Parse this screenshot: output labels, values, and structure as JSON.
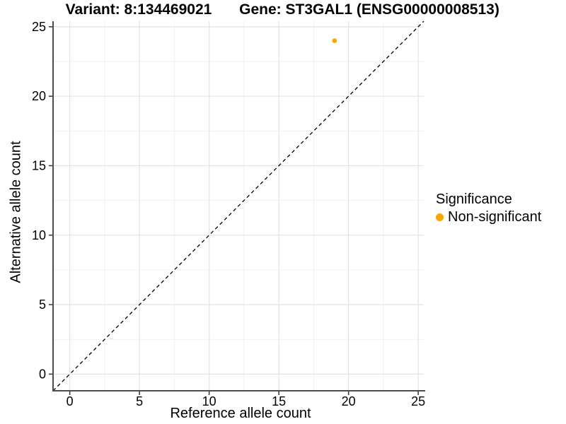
{
  "figure": {
    "title_left": "Variant: 8:134469021",
    "title_right": "Gene: ST3GAL1 (ENSG00000008513)"
  },
  "chart_data": {
    "type": "scatter",
    "title_left": "Variant: 8:134469021",
    "title_right": "Gene: ST3GAL1 (ENSG00000008513)",
    "xlabel": "Reference allele count",
    "ylabel": "Alternative allele count",
    "xlim": [
      -1.2,
      25.4
    ],
    "ylim": [
      -1.2,
      25.4
    ],
    "x_ticks": [
      0,
      5,
      10,
      15,
      20,
      25
    ],
    "y_ticks": [
      0,
      5,
      10,
      15,
      20,
      25
    ],
    "x_minor_ticks": [
      2.5,
      7.5,
      12.5,
      17.5,
      22.5
    ],
    "y_minor_ticks": [
      2.5,
      7.5,
      12.5,
      17.5,
      22.5
    ],
    "grid": "major+minor",
    "series": [
      {
        "name": "Non-significant",
        "color": "#FFA500",
        "points": [
          {
            "x": 19,
            "y": 24
          }
        ]
      }
    ],
    "reference_line": {
      "kind": "identity",
      "style": "dashed",
      "color": "#000000"
    },
    "legend": {
      "title": "Significance",
      "position": "right",
      "items": [
        {
          "label": "Non-significant",
          "color": "#FFA500"
        }
      ]
    }
  }
}
